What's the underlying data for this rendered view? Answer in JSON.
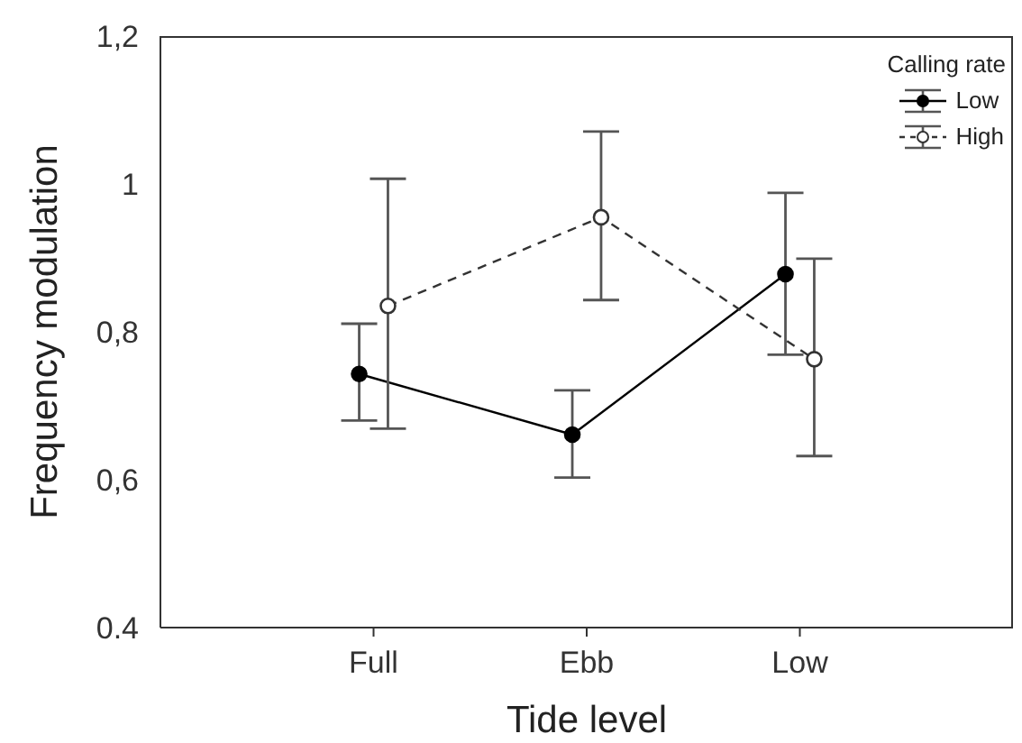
{
  "chart_data": {
    "type": "line",
    "xlabel": "Tide level",
    "ylabel": "Frequency modulation",
    "legend_title": "Calling rate",
    "categories": [
      "Full",
      "Ebb",
      "Low"
    ],
    "series": [
      {
        "name": "Low",
        "color": "#000000",
        "line_style": "solid",
        "values": [
          0.743,
          0.661,
          0.878
        ],
        "errors": [
          [
            0.68,
            0.811
          ],
          [
            0.603,
            0.721
          ],
          [
            0.769,
            0.988
          ]
        ]
      },
      {
        "name": "High",
        "color": "#333333",
        "line_style": "dashed",
        "values": [
          0.835,
          0.955,
          0.763
        ],
        "errors": [
          [
            0.669,
            1.007
          ],
          [
            0.843,
            1.071
          ],
          [
            0.632,
            0.899
          ]
        ]
      }
    ],
    "ylim": [
      0.4,
      1.2
    ],
    "yticks": [
      {
        "value": 1.2,
        "label": "1,2"
      },
      1,
      {
        "value": 0.8,
        "label": "0,8"
      },
      {
        "value": 0.6,
        "label": "0,6"
      },
      0.4
    ],
    "marker": "circle",
    "grid": false,
    "legend": "top right"
  }
}
